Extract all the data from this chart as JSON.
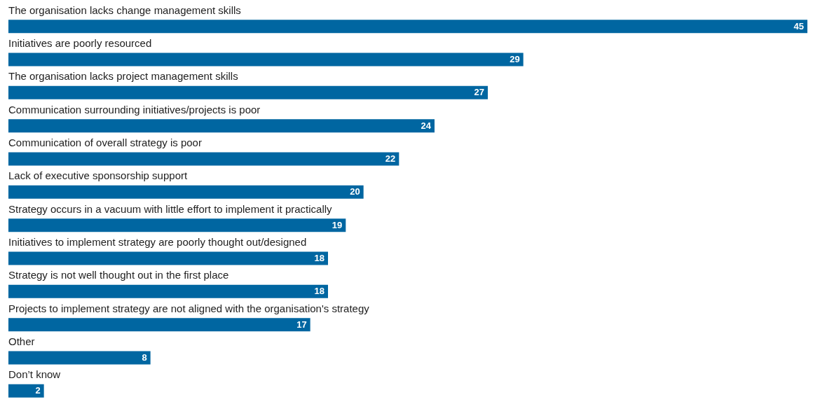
{
  "chart_data": {
    "type": "bar",
    "orientation": "horizontal",
    "categories": [
      "The organisation lacks change management skills",
      "Initiatives are poorly resourced",
      "The organisation lacks project management skills",
      "Communication surrounding initiatives/projects is poor",
      "Communication of overall strategy is poor",
      "Lack of executive sponsorship support",
      "Strategy occurs in a vacuum with little effort to implement it practically",
      "Initiatives to implement strategy are poorly thought out/designed",
      "Strategy is not well thought out in the first place",
      "Projects to implement strategy are not aligned with the organisation's strategy",
      "Other",
      "Don’t know"
    ],
    "values": [
      45,
      29,
      27,
      24,
      22,
      20,
      19,
      18,
      18,
      17,
      8,
      2
    ],
    "color": "#0066a1",
    "data_labels": true
  }
}
